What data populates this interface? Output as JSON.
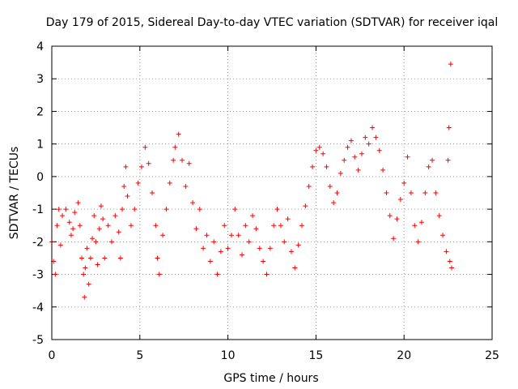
{
  "chart_data": {
    "type": "scatter",
    "title": "Day 179 of 2015, Sidereal Day-to-day VTEC variation (SDTVAR) for receiver iqal",
    "xlabel": "GPS time / hours",
    "ylabel": "SDTVAR / TECUs",
    "xlim": [
      0,
      25
    ],
    "ylim": [
      -5,
      4
    ],
    "xticks": [
      "0",
      "5",
      "10",
      "15",
      "20",
      "25"
    ],
    "yticks": [
      "-5",
      "-4",
      "-3",
      "-2",
      "-1",
      "0",
      "1",
      "2",
      "3",
      "4"
    ],
    "grid": true,
    "marker": "+",
    "color": "#ff0000",
    "series": [
      {
        "name": "SDTVAR",
        "points": [
          [
            0.0,
            -2.0
          ],
          [
            0.1,
            -2.6
          ],
          [
            0.2,
            -3.0
          ],
          [
            0.3,
            -1.5
          ],
          [
            0.4,
            -1.0
          ],
          [
            0.5,
            -2.1
          ],
          [
            0.6,
            -1.2
          ],
          [
            0.8,
            -1.0
          ],
          [
            1.0,
            -1.4
          ],
          [
            1.1,
            -1.8
          ],
          [
            1.2,
            -1.6
          ],
          [
            1.3,
            -1.1
          ],
          [
            1.5,
            -0.8
          ],
          [
            1.6,
            -1.5
          ],
          [
            1.7,
            -2.5
          ],
          [
            1.8,
            -3.0
          ],
          [
            1.85,
            -3.7
          ],
          [
            1.9,
            -2.8
          ],
          [
            2.0,
            -2.2
          ],
          [
            2.1,
            -3.3
          ],
          [
            2.2,
            -2.5
          ],
          [
            2.3,
            -1.9
          ],
          [
            2.4,
            -1.2
          ],
          [
            2.5,
            -2.0
          ],
          [
            2.6,
            -2.7
          ],
          [
            2.7,
            -1.6
          ],
          [
            2.8,
            -0.9
          ],
          [
            2.9,
            -1.3
          ],
          [
            3.0,
            -2.5
          ],
          [
            3.2,
            -1.5
          ],
          [
            3.4,
            -2.0
          ],
          [
            3.6,
            -1.2
          ],
          [
            3.8,
            -1.7
          ],
          [
            3.9,
            -2.5
          ],
          [
            4.0,
            -1.0
          ],
          [
            4.1,
            -0.3
          ],
          [
            4.2,
            0.3
          ],
          [
            4.3,
            -0.6
          ],
          [
            4.5,
            -1.5
          ],
          [
            4.7,
            -1.0
          ],
          [
            4.9,
            -0.2
          ],
          [
            5.1,
            0.3
          ],
          [
            5.3,
            0.9
          ],
          [
            5.5,
            0.4
          ],
          [
            5.7,
            -0.5
          ],
          [
            5.9,
            -1.5
          ],
          [
            6.0,
            -2.5
          ],
          [
            6.1,
            -3.0
          ],
          [
            6.3,
            -1.8
          ],
          [
            6.5,
            -1.0
          ],
          [
            6.7,
            -0.2
          ],
          [
            6.9,
            0.5
          ],
          [
            7.0,
            0.9
          ],
          [
            7.2,
            1.3
          ],
          [
            7.4,
            0.5
          ],
          [
            7.6,
            -0.3
          ],
          [
            7.8,
            0.4
          ],
          [
            8.0,
            -0.8
          ],
          [
            8.2,
            -1.6
          ],
          [
            8.4,
            -1.0
          ],
          [
            8.6,
            -2.2
          ],
          [
            8.8,
            -1.8
          ],
          [
            9.0,
            -2.6
          ],
          [
            9.2,
            -2.0
          ],
          [
            9.4,
            -3.0
          ],
          [
            9.6,
            -2.3
          ],
          [
            9.8,
            -1.5
          ],
          [
            10.0,
            -2.2
          ],
          [
            10.2,
            -1.8
          ],
          [
            10.4,
            -1.0
          ],
          [
            10.6,
            -1.8
          ],
          [
            10.8,
            -2.4
          ],
          [
            11.0,
            -1.5
          ],
          [
            11.2,
            -2.0
          ],
          [
            11.4,
            -1.2
          ],
          [
            11.6,
            -1.6
          ],
          [
            11.8,
            -2.2
          ],
          [
            12.0,
            -2.6
          ],
          [
            12.2,
            -3.0
          ],
          [
            12.4,
            -2.2
          ],
          [
            12.6,
            -1.5
          ],
          [
            12.8,
            -1.0
          ],
          [
            13.0,
            -1.5
          ],
          [
            13.2,
            -2.0
          ],
          [
            13.4,
            -1.3
          ],
          [
            13.6,
            -2.3
          ],
          [
            13.8,
            -2.8
          ],
          [
            14.0,
            -2.1
          ],
          [
            14.2,
            -1.5
          ],
          [
            14.4,
            -0.9
          ],
          [
            14.6,
            -0.3
          ],
          [
            14.8,
            0.3
          ],
          [
            15.0,
            0.8
          ],
          [
            15.2,
            0.9
          ],
          [
            15.4,
            0.7
          ],
          [
            15.6,
            0.3
          ],
          [
            15.8,
            -0.3
          ],
          [
            16.0,
            -0.8
          ],
          [
            16.2,
            -0.5
          ],
          [
            16.4,
            0.1
          ],
          [
            16.6,
            0.5
          ],
          [
            16.8,
            0.9
          ],
          [
            17.0,
            1.1
          ],
          [
            17.2,
            0.6
          ],
          [
            17.4,
            0.2
          ],
          [
            17.6,
            0.7
          ],
          [
            17.8,
            1.2
          ],
          [
            18.0,
            1.0
          ],
          [
            18.2,
            1.5
          ],
          [
            18.4,
            1.2
          ],
          [
            18.6,
            0.8
          ],
          [
            18.8,
            0.2
          ],
          [
            19.0,
            -0.5
          ],
          [
            19.2,
            -1.2
          ],
          [
            19.4,
            -1.9
          ],
          [
            19.6,
            -1.3
          ],
          [
            19.8,
            -0.7
          ],
          [
            20.0,
            -0.2
          ],
          [
            20.2,
            0.6
          ],
          [
            20.4,
            -0.5
          ],
          [
            20.6,
            -1.5
          ],
          [
            20.8,
            -2.0
          ],
          [
            21.0,
            -1.4
          ],
          [
            21.2,
            -0.5
          ],
          [
            21.4,
            0.3
          ],
          [
            21.6,
            0.5
          ],
          [
            21.8,
            -0.5
          ],
          [
            22.0,
            -1.2
          ],
          [
            22.2,
            -1.8
          ],
          [
            22.4,
            -2.3
          ],
          [
            22.5,
            0.5
          ],
          [
            22.55,
            1.5
          ],
          [
            22.6,
            -2.6
          ],
          [
            22.7,
            -2.8
          ],
          [
            22.65,
            3.45
          ]
        ]
      }
    ]
  }
}
